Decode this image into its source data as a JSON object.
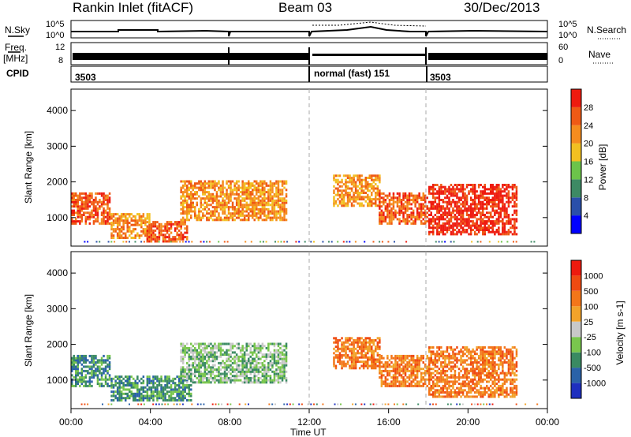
{
  "header": {
    "station": "Rankin Inlet (fitACF)",
    "beam": "Beam 03",
    "date": "30/Dec/2013"
  },
  "top_strip": {
    "nsky_label": "N.Sky",
    "nsky_ticks": [
      "10^5",
      "10^0"
    ],
    "nsearch_label": "N.Search",
    "nsearch_ticks": [
      "10^5",
      "10^0"
    ],
    "freq_label": "Freq.",
    "freq_unit": "[MHz]",
    "freq_ticks": [
      "12",
      "8"
    ],
    "nave_label": "Nave",
    "nave_ticks": [
      "60",
      "0"
    ],
    "cpid_label": "CPID",
    "cpid_segments": [
      {
        "label": "3503",
        "start": 0,
        "end": 12
      },
      {
        "label": "normal (fast) 151",
        "start": 12,
        "end": 18
      },
      {
        "label": "3503",
        "start": 18,
        "end": 24
      }
    ]
  },
  "chart_data": [
    {
      "type": "heatmap",
      "panel": "power",
      "ylabel": "Slant Range [km]",
      "ylim": [
        200,
        4600
      ],
      "yticks": [
        "1000",
        "2000",
        "3000",
        "4000"
      ],
      "xlim": [
        "00:00",
        "24:00"
      ],
      "colorbar_label": "Power [dB]",
      "colorbar_ticks": [
        "4",
        "8",
        "12",
        "16",
        "20",
        "24",
        "28"
      ],
      "colors": [
        "#0000ff",
        "#2a4faa",
        "#3d8a64",
        "#6cc44a",
        "#f2c021",
        "#f58c1e",
        "#ef5a15",
        "#ee1b0f"
      ],
      "regions": [
        {
          "t": [
            0.0,
            2.0
          ],
          "range": [
            800,
            1700
          ],
          "level": 6
        },
        {
          "t": [
            2.0,
            4.0
          ],
          "range": [
            400,
            1100
          ],
          "level": 5
        },
        {
          "t": [
            3.8,
            5.8
          ],
          "range": [
            300,
            900
          ],
          "level": 6
        },
        {
          "t": [
            5.5,
            10.8
          ],
          "range": [
            900,
            2000
          ],
          "level": 5
        },
        {
          "t": [
            13.2,
            15.5
          ],
          "range": [
            1300,
            2200
          ],
          "level": 5
        },
        {
          "t": [
            15.5,
            18.0
          ],
          "range": [
            800,
            1700
          ],
          "level": 6
        },
        {
          "t": [
            18.0,
            22.5
          ],
          "range": [
            500,
            1900
          ],
          "level": 7
        }
      ]
    },
    {
      "type": "heatmap",
      "panel": "velocity",
      "ylabel": "Slant Range [km]",
      "ylim": [
        200,
        4600
      ],
      "yticks": [
        "1000",
        "2000",
        "3000",
        "4000"
      ],
      "xlim": [
        "00:00",
        "24:00"
      ],
      "colorbar_label": "Velocity [m s-1]",
      "colorbar_ticks": [
        "1000",
        "500",
        "100",
        "25",
        "-25",
        "-100",
        "-500",
        "-1000"
      ],
      "colors": [
        "#1e2fbf",
        "#2a62a8",
        "#3a8a62",
        "#79c64d",
        "#c8c8c8",
        "#f2a32a",
        "#f3761a",
        "#ef4a12",
        "#ed1a0e"
      ],
      "regions": [
        {
          "t": [
            0.0,
            2.0
          ],
          "range": [
            800,
            1700
          ],
          "level": 2
        },
        {
          "t": [
            2.0,
            6.0
          ],
          "range": [
            400,
            1100
          ],
          "level": 2
        },
        {
          "t": [
            5.5,
            10.8
          ],
          "range": [
            900,
            2000
          ],
          "level": 3
        },
        {
          "t": [
            13.2,
            15.5
          ],
          "range": [
            1300,
            2200
          ],
          "level": 6
        },
        {
          "t": [
            15.5,
            18.0
          ],
          "range": [
            800,
            1700
          ],
          "level": 6
        },
        {
          "t": [
            18.0,
            22.5
          ],
          "range": [
            500,
            1900
          ],
          "level": 6
        }
      ]
    }
  ],
  "xaxis": {
    "label": "Time UT",
    "ticks": [
      "00:00",
      "04:00",
      "08:00",
      "12:00",
      "16:00",
      "20:00",
      "00:00"
    ]
  }
}
